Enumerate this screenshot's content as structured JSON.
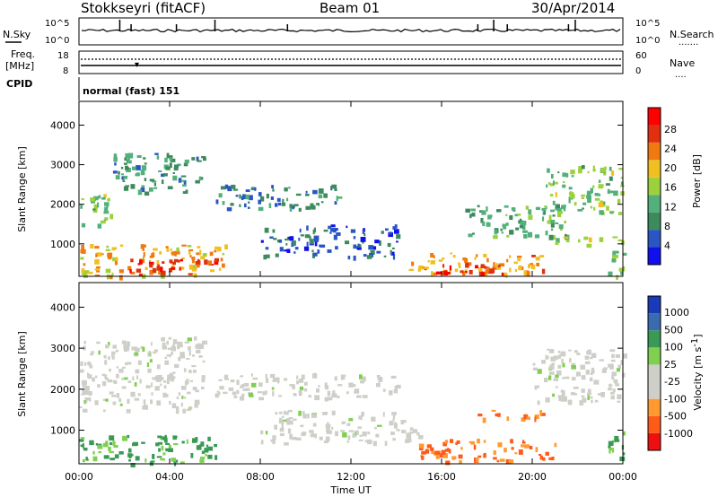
{
  "header": {
    "title": "Stokkseyri (fitACF)",
    "beam": "Beam 01",
    "date": "30/Apr/2014"
  },
  "noise_panel": {
    "left_label": "N.Sky",
    "left_ticks": [
      "10^5",
      "10^0"
    ],
    "right_ticks": [
      "10^5",
      "10^0"
    ],
    "right_label": "N.Search",
    "right_legend": "......."
  },
  "freq_panel": {
    "label_top": "Freq.",
    "label_unit": "[MHz]",
    "left_ticks": [
      "18",
      "8"
    ],
    "right_ticks": [
      "60",
      "0"
    ],
    "right_label": "Nave",
    "right_legend": "...."
  },
  "cpid_panel": {
    "label": "CPID",
    "text": "normal (fast) 151"
  },
  "power_panel": {
    "ylabel": "Slant Range [km]",
    "yticks": [
      "4000",
      "3000",
      "2000",
      "1000"
    ],
    "colorbar_label": "Power [dB]",
    "colorbar_ticks": [
      "28",
      "24",
      "20",
      "16",
      "12",
      "8",
      "4"
    ]
  },
  "velocity_panel": {
    "ylabel": "Slant Range [km]",
    "yticks": [
      "4000",
      "3000",
      "2000",
      "1000"
    ],
    "colorbar_label": "Velocity [m s",
    "colorbar_label_sup": "-1",
    "colorbar_label_end": "]",
    "colorbar_ticks": [
      "1000",
      "500",
      "100",
      "25",
      "-25",
      "-100",
      "-500",
      "-1000"
    ]
  },
  "xaxis": {
    "label": "Time UT",
    "ticks": [
      "00:00",
      "04:00",
      "08:00",
      "12:00",
      "16:00",
      "20:00",
      "00:00"
    ]
  },
  "colors": {
    "power_scale": [
      "#1010ee",
      "#2a56c4",
      "#3d8b5d",
      "#52b07a",
      "#9dd13c",
      "#f0c020",
      "#f07a10",
      "#e03010",
      "#ff0000"
    ],
    "velocity_scale": [
      "#ee1010",
      "#ff5a18",
      "#ff9a30",
      "#cfcfc9",
      "#cfcfc9",
      "#7fd050",
      "#3a9a55",
      "#3a6ab0",
      "#1a3ab8"
    ]
  },
  "chart_data": [
    {
      "type": "heatmap",
      "name": "power",
      "x_range_hours": [
        0,
        24
      ],
      "y_range_km": [
        180,
        4600
      ],
      "color_range_db": [
        0,
        32
      ],
      "regions": [
        {
          "t": [
            0.0,
            1.5
          ],
          "r": [
            1500,
            2300
          ],
          "db": 14
        },
        {
          "t": [
            1.5,
            5.5
          ],
          "r": [
            2300,
            3300
          ],
          "db": 10
        },
        {
          "t": [
            0.0,
            6.5
          ],
          "r": [
            200,
            1000
          ],
          "db": 20
        },
        {
          "t": [
            2.0,
            6.0
          ],
          "r": [
            250,
            650
          ],
          "db": 28
        },
        {
          "t": [
            6.0,
            11.5
          ],
          "r": [
            1900,
            2500
          ],
          "db": 8
        },
        {
          "t": [
            8.0,
            14.0
          ],
          "r": [
            700,
            1500
          ],
          "db": 6
        },
        {
          "t": [
            14.5,
            20.5
          ],
          "r": [
            250,
            800
          ],
          "db": 22
        },
        {
          "t": [
            15.5,
            19.0
          ],
          "r": [
            250,
            550
          ],
          "db": 28
        },
        {
          "t": [
            17.0,
            21.5
          ],
          "r": [
            1200,
            2000
          ],
          "db": 12
        },
        {
          "t": [
            20.5,
            24.0
          ],
          "r": [
            1800,
            3000
          ],
          "db": 14
        },
        {
          "t": [
            21.0,
            24.0
          ],
          "r": [
            1000,
            1200
          ],
          "db": 16
        },
        {
          "t": [
            23.3,
            24.0
          ],
          "r": [
            200,
            1000
          ],
          "db": 14
        }
      ]
    },
    {
      "type": "heatmap",
      "name": "velocity",
      "x_range_hours": [
        0,
        24
      ],
      "y_range_km": [
        180,
        4600
      ],
      "color_range_ms": [
        -1000,
        1000
      ],
      "regions": [
        {
          "t": [
            0.0,
            5.5
          ],
          "r": [
            1500,
            3300
          ],
          "v": 0
        },
        {
          "t": [
            0.0,
            6.0
          ],
          "r": [
            200,
            900
          ],
          "v": 150
        },
        {
          "t": [
            6.0,
            14.0
          ],
          "r": [
            1800,
            2400
          ],
          "v": 0
        },
        {
          "t": [
            8.0,
            15.0
          ],
          "r": [
            700,
            1500
          ],
          "v": 0
        },
        {
          "t": [
            15.0,
            21.0
          ],
          "r": [
            250,
            800
          ],
          "v": -120
        },
        {
          "t": [
            17.5,
            21.0
          ],
          "r": [
            1300,
            1500
          ],
          "v": -150
        },
        {
          "t": [
            20.0,
            24.0
          ],
          "r": [
            1700,
            3000
          ],
          "v": 0
        },
        {
          "t": [
            23.3,
            24.0
          ],
          "r": [
            300,
            1000
          ],
          "v": 200
        }
      ]
    }
  ]
}
